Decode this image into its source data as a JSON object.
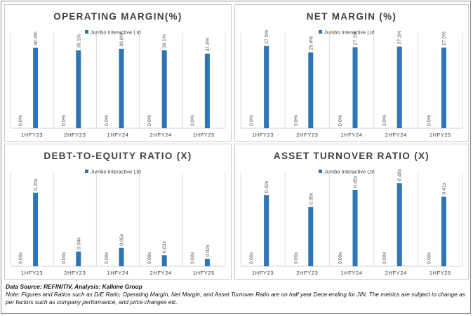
{
  "chart_data": [
    {
      "type": "bar",
      "title": "OPERATING MARGIN(%)",
      "categories": [
        "1HFY23",
        "2HFY23",
        "1HFY24",
        "2HFY24",
        "1HFY25"
      ],
      "series": [
        {
          "name": "",
          "values": [
            0,
            0,
            0,
            0,
            0
          ],
          "labels": [
            "0.0%",
            "0.0%",
            "0.0%",
            "0.0%",
            "0.0%"
          ]
        },
        {
          "name": "Jumbo Interactive Ltd",
          "values": [
            40.4,
            39.1,
            39.8,
            39.1,
            37.4
          ],
          "labels": [
            "40.4%",
            "39.1%",
            "39.8%",
            "39.1%",
            "37.4%"
          ]
        }
      ],
      "ylim": [
        0,
        45
      ],
      "legend": "top",
      "colors": {
        "bar": "#2e75b6"
      }
    },
    {
      "type": "bar",
      "title": "NET MARGIN (%)",
      "categories": [
        "1HFY23",
        "2HFY23",
        "1HFY24",
        "2HFY24",
        "1HFY25"
      ],
      "series": [
        {
          "name": "",
          "values": [
            0,
            0,
            0,
            0,
            0
          ],
          "labels": [
            "0.0%",
            "0.0%",
            "0.0%",
            "0.0%",
            "0.0%"
          ]
        },
        {
          "name": "Jumbo Interactive Ltd",
          "values": [
            27.5,
            25.4,
            27.1,
            27.3,
            27.0
          ],
          "labels": [
            "27.5%",
            "25.4%",
            "27.1%",
            "27.3%",
            "27.0%"
          ]
        }
      ],
      "ylim": [
        0,
        30
      ],
      "legend": "top",
      "colors": {
        "bar": "#2e75b6"
      }
    },
    {
      "type": "bar",
      "title": "DEBT-TO-EQUITY  RATIO (X)",
      "categories": [
        "1HFY23",
        "2HFY23",
        "1HFY24",
        "2HFY24",
        "1HFY25"
      ],
      "series": [
        {
          "name": "",
          "values": [
            0,
            0,
            0,
            0,
            0
          ],
          "labels": [
            "0.00x",
            "0.00x",
            "0.00x",
            "0.00x",
            "0.00x"
          ]
        },
        {
          "name": "Jumbo Interactive Ltd",
          "values": [
            0.2,
            0.04,
            0.05,
            0.03,
            0.02
          ],
          "labels": [
            "0.20x",
            "0.04x",
            "0.05x",
            "0.03x",
            "0.02x"
          ]
        }
      ],
      "ylim": [
        0,
        0.24
      ],
      "legend": "top",
      "colors": {
        "bar": "#2e75b6"
      }
    },
    {
      "type": "bar",
      "title": "ASSET TURNOVER RATIO (X)",
      "categories": [
        "1HFY23",
        "2HFY23",
        "1HFY24",
        "2HFY24",
        "1HFY25"
      ],
      "series": [
        {
          "name": "",
          "values": [
            0,
            0,
            0,
            0,
            0
          ],
          "labels": [
            "0.00x",
            "0.00x",
            "0.00x",
            "0.00x",
            "0.00x"
          ]
        },
        {
          "name": "Jumbo Interactive Ltd",
          "values": [
            0.42,
            0.35,
            0.45,
            0.49,
            0.41
          ],
          "labels": [
            "0.42x",
            "0.35x",
            "0.45x",
            "0.49x",
            "0.41x"
          ]
        }
      ],
      "ylim": [
        0,
        0.52
      ],
      "legend": "top",
      "colors": {
        "bar": "#2e75b6"
      }
    }
  ],
  "footer": {
    "source": "Data Source: REFINITIV, Analysis: Kalkine Group",
    "note": "Note: Figures and Ratios such as D/E Ratio, Operating Margin, Net Margin, and Asset Turnover Ratio are on half year Dece-ending for JIN. The metrics are subject to change as per factors such as company performance, and price changes etc."
  }
}
